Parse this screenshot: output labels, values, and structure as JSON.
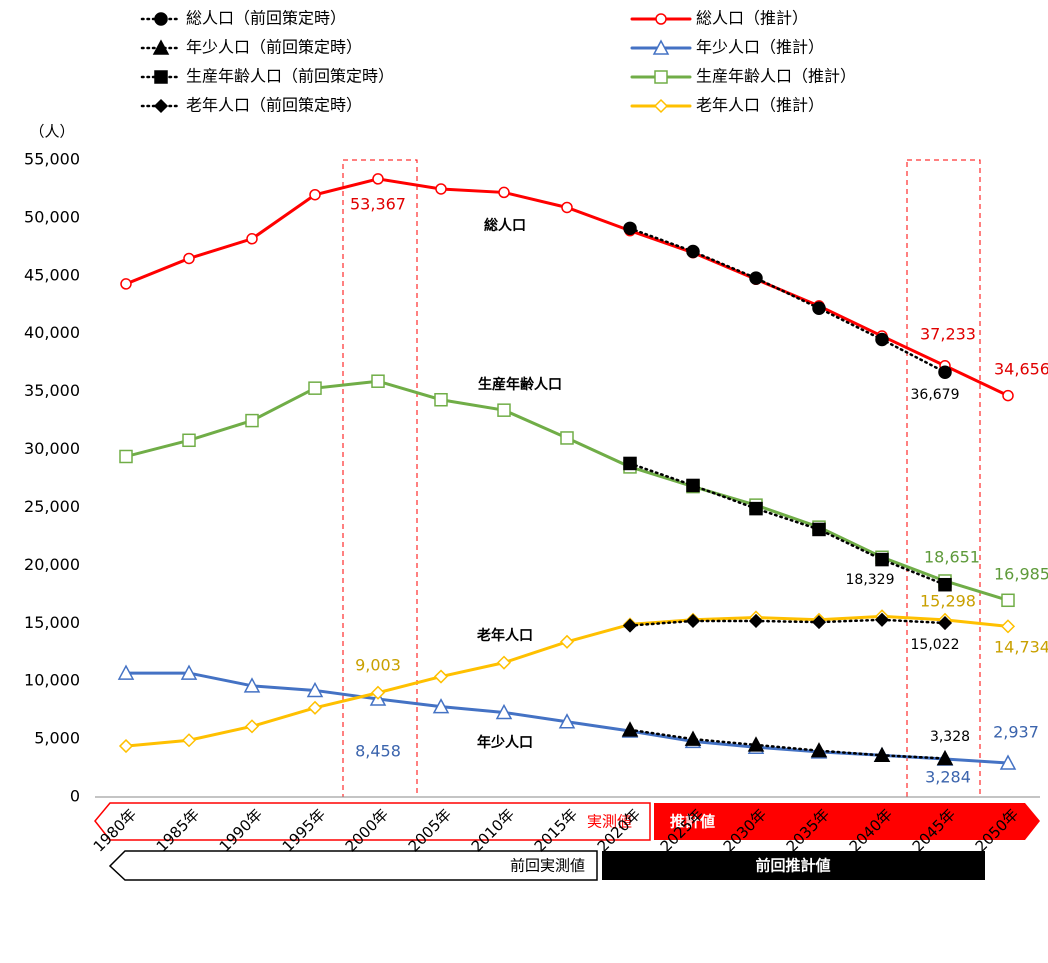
{
  "chart_data": {
    "type": "line",
    "y_unit_label": "（人）",
    "categories": [
      "1980年",
      "1985年",
      "1990年",
      "1995年",
      "2000年",
      "2005年",
      "2010年",
      "2015年",
      "2020年",
      "2025年",
      "2030年",
      "2035年",
      "2040年",
      "2045年",
      "2050年"
    ],
    "ylim": [
      0,
      55000
    ],
    "yticks": [
      0,
      {
        "value": 5000,
        "label": "5,000"
      },
      {
        "value": 10000,
        "label": "10,000"
      },
      {
        "value": 15000,
        "label": "15,000"
      },
      {
        "value": 20000,
        "label": "20,000"
      },
      {
        "value": 25000,
        "label": "25,000"
      },
      {
        "value": 30000,
        "label": "30,000"
      },
      {
        "value": 35000,
        "label": "35,000"
      },
      {
        "value": 40000,
        "label": "40,000"
      },
      {
        "value": 45000,
        "label": "45,000"
      },
      {
        "value": 50000,
        "label": "50,000"
      },
      {
        "value": 55000,
        "label": "55,000"
      }
    ],
    "series": [
      {
        "name": "総人口（前回策定時）",
        "color": "#000000",
        "line_style": "dotted",
        "marker": "circle",
        "values": [
          null,
          null,
          null,
          null,
          null,
          null,
          null,
          null,
          49100,
          47100,
          44800,
          42200,
          39500,
          36679,
          null
        ],
        "value_labels": [
          null,
          null,
          null,
          null,
          null,
          null,
          null,
          null,
          null,
          null,
          null,
          null,
          null,
          "36,679",
          null
        ],
        "label_color": "#000000"
      },
      {
        "name": "総人口（推計）",
        "color": "#ff0000",
        "line_style": "solid",
        "marker": "circle",
        "values": [
          44300,
          46500,
          48200,
          52000,
          53367,
          52500,
          52200,
          50900,
          48900,
          47000,
          44700,
          42400,
          39800,
          37233,
          34656
        ],
        "value_labels": [
          null,
          null,
          null,
          null,
          "53,367",
          null,
          null,
          null,
          null,
          null,
          null,
          null,
          null,
          "37,233",
          "34,656"
        ],
        "label_color": "#e00000"
      },
      {
        "name": "年少人口（前回策定時）",
        "color": "#000000",
        "line_style": "dotted",
        "marker": "triangle",
        "values": [
          null,
          null,
          null,
          null,
          null,
          null,
          null,
          null,
          5800,
          5000,
          4500,
          4000,
          3600,
          3328,
          null
        ],
        "value_labels": [
          null,
          null,
          null,
          null,
          null,
          null,
          null,
          null,
          null,
          null,
          null,
          null,
          null,
          "3,328",
          null
        ],
        "label_color": "#000000"
      },
      {
        "name": "年少人口（推計）",
        "color": "#4472c4",
        "line_style": "solid",
        "marker": "triangle",
        "values": [
          10700,
          10700,
          9600,
          9200,
          8458,
          7800,
          7300,
          6500,
          5700,
          4800,
          4300,
          3900,
          3600,
          3284,
          2937
        ],
        "value_labels": [
          null,
          null,
          null,
          null,
          "8,458",
          null,
          null,
          null,
          null,
          null,
          null,
          null,
          null,
          "3,284",
          "2,937"
        ],
        "label_color": "#3b64ad"
      },
      {
        "name": "生産年齢人口（前回策定時）",
        "color": "#000000",
        "line_style": "dotted",
        "marker": "square",
        "values": [
          null,
          null,
          null,
          null,
          null,
          null,
          null,
          null,
          28800,
          26900,
          24900,
          23100,
          20500,
          18329,
          null
        ],
        "value_labels": [
          null,
          null,
          null,
          null,
          null,
          null,
          null,
          null,
          null,
          null,
          null,
          null,
          null,
          "18,329",
          null
        ],
        "label_color": "#000000"
      },
      {
        "name": "生産年齢人口（推計）",
        "color": "#70ad47",
        "line_style": "solid",
        "marker": "square",
        "values": [
          29400,
          30800,
          32500,
          35300,
          35900,
          34300,
          33400,
          31000,
          28500,
          26800,
          25200,
          23300,
          20700,
          18651,
          16985
        ],
        "value_labels": [
          null,
          null,
          null,
          null,
          null,
          null,
          null,
          null,
          null,
          null,
          null,
          null,
          null,
          "18,651",
          "16,985"
        ],
        "label_color": "#5e9a3a"
      },
      {
        "name": "老年人口（前回策定時）",
        "color": "#000000",
        "line_style": "dotted",
        "marker": "diamond",
        "values": [
          null,
          null,
          null,
          null,
          null,
          null,
          null,
          null,
          14800,
          15200,
          15200,
          15100,
          15300,
          15022,
          null
        ],
        "value_labels": [
          null,
          null,
          null,
          null,
          null,
          null,
          null,
          null,
          null,
          null,
          null,
          null,
          null,
          "15,022",
          null
        ],
        "label_color": "#000000"
      },
      {
        "name": "老年人口（推計）",
        "color": "#ffc000",
        "line_style": "solid",
        "marker": "diamond",
        "values": [
          4400,
          4900,
          6100,
          7700,
          9003,
          10400,
          11600,
          13400,
          14900,
          15300,
          15500,
          15300,
          15600,
          15298,
          14734
        ],
        "value_labels": [
          null,
          null,
          null,
          null,
          "9,003",
          null,
          null,
          null,
          null,
          null,
          null,
          null,
          null,
          "15,298",
          "14,734"
        ],
        "label_color": "#c9a000"
      }
    ],
    "annotations": [
      "総人口",
      "生産年齢人口",
      "老年人口",
      "年少人口"
    ],
    "periods": [
      "実測値",
      "推計値",
      "前回実測値",
      "前回推計値"
    ]
  }
}
